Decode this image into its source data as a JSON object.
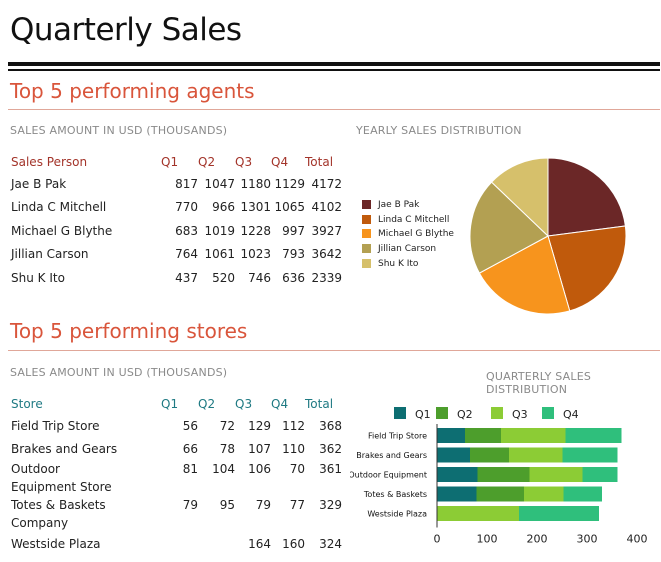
{
  "page": {
    "title": "Quarterly Sales"
  },
  "agents": {
    "heading": "Top 5 performing agents",
    "table_caption": "SALES AMOUNT IN USD (THOUSANDS)",
    "chart_caption": "YEARLY SALES DISTRIBUTION",
    "columns": [
      "Sales Person",
      "Q1",
      "Q2",
      "Q3",
      "Q4",
      "Total"
    ],
    "rows": [
      [
        "Jae B Pak",
        "817",
        "1047",
        "1180",
        "1129",
        "4172"
      ],
      [
        "Linda C Mitchell",
        "770",
        "966",
        "1301",
        "1065",
        "4102"
      ],
      [
        "Michael G Blythe",
        "683",
        "1019",
        "1228",
        "997",
        "3927"
      ],
      [
        "Jillian  Carson",
        "764",
        "1061",
        "1023",
        "793",
        "3642"
      ],
      [
        "Shu K Ito",
        "437",
        "520",
        "746",
        "636",
        "2339"
      ]
    ]
  },
  "stores": {
    "heading": "Top 5 performing stores",
    "table_caption": "SALES AMOUNT IN USD (THOUSANDS)",
    "chart_caption": "QUARTERLY SALES DISTRIBUTION",
    "columns": [
      "Store",
      "Q1",
      "Q2",
      "Q3",
      "Q4",
      "Total"
    ],
    "rows": [
      [
        "Field Trip Store",
        "56",
        "72",
        "129",
        "112",
        "368"
      ],
      [
        "Brakes and Gears",
        "66",
        "78",
        "107",
        "110",
        "362"
      ],
      [
        "Outdoor Equipment Store",
        "81",
        "104",
        "106",
        "70",
        "361"
      ],
      [
        "Totes & Baskets Company",
        "79",
        "95",
        "79",
        "77",
        "329"
      ],
      [
        "Westside Plaza",
        "",
        "",
        "164",
        "160",
        "324"
      ]
    ]
  },
  "chart_data": [
    {
      "type": "pie",
      "title": "YEARLY SALES DISTRIBUTION",
      "labels": [
        "Jae B Pak",
        "Linda C Mitchell",
        "Michael G Blythe",
        "Jillian  Carson",
        "Shu K Ito"
      ],
      "values": [
        4172,
        4102,
        3927,
        3642,
        2339
      ],
      "colors": [
        "#6b2727",
        "#c05a0c",
        "#f7941d",
        "#b3a052",
        "#d6c06b"
      ],
      "legend": "left"
    },
    {
      "type": "bar",
      "orientation": "horizontal",
      "stacked": true,
      "title": "QUARTERLY SALES DISTRIBUTION",
      "categories": [
        "Field Trip Store",
        "Brakes and Gears",
        "Outdoor Equipment",
        "Totes & Baskets",
        "Westside Plaza"
      ],
      "series": [
        {
          "name": "Q1",
          "values": [
            56,
            66,
            81,
            79,
            0
          ],
          "color": "#0d6e72"
        },
        {
          "name": "Q2",
          "values": [
            72,
            78,
            104,
            95,
            0
          ],
          "color": "#4d9e2c"
        },
        {
          "name": "Q3",
          "values": [
            129,
            107,
            106,
            79,
            164
          ],
          "color": "#8ccc35"
        },
        {
          "name": "Q4",
          "values": [
            112,
            110,
            70,
            77,
            160
          ],
          "color": "#2fbf7c"
        }
      ],
      "xlim": [
        0,
        400
      ],
      "xticks": [
        "0",
        "100",
        "200",
        "300",
        "400"
      ],
      "legend": "top",
      "grid": false
    }
  ]
}
